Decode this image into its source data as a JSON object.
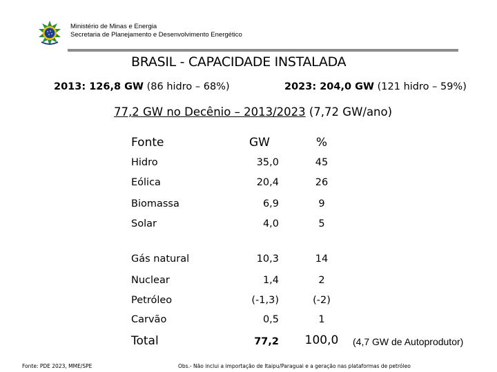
{
  "header": {
    "ministry_line1": "Ministério de Minas e Energia",
    "ministry_line2": "Secretaria de Planejamento e Desenvolvimento Energético",
    "seal_icon": "brazil-coat-of-arms-icon",
    "seal_colors": {
      "blue": "#1d3f8c",
      "green": "#2e8b3a",
      "yellow": "#e3c21a"
    }
  },
  "title": "BRASIL - CAPACIDADE INSTALADA",
  "summary": {
    "y2013_bold": "2013: 126,8 GW",
    "y2013_rest": " (86 hidro – 68%)",
    "y2023_bold": "2023: 204,0 GW",
    "y2023_rest": " (121 hidro – 59%)"
  },
  "decade": {
    "underlined": "77,2 GW no Decênio – 2013/2023",
    "rest": " (7,72 GW/ano)"
  },
  "table": {
    "headers": {
      "fonte": "Fonte",
      "gw": "GW",
      "pct": "%"
    },
    "rows": [
      {
        "fonte": "Hidro",
        "gw": "35,0",
        "pct": "45"
      },
      {
        "fonte": "Eólica",
        "gw": "20,4",
        "pct": "26"
      },
      {
        "fonte": "Biomassa",
        "gw": "6,9",
        "pct": "9"
      },
      {
        "fonte": "Solar",
        "gw": "4,0",
        "pct": "5"
      },
      {
        "fonte": "Gás natural",
        "gw": "10,3",
        "pct": "14"
      },
      {
        "fonte": "Nuclear",
        "gw": "1,4",
        "pct": "2"
      },
      {
        "fonte": "Petróleo",
        "gw": "(-1,3)",
        "pct": "(-2)"
      },
      {
        "fonte": "Carvão",
        "gw": "0,5",
        "pct": "1"
      }
    ],
    "total": {
      "fonte": "Total",
      "gw": "77,2",
      "pct": "100,0"
    },
    "autoprodutor_note": "(4,7 GW de Autoprodutor)"
  },
  "footer": {
    "source": "Fonte: PDE 2023, MME/SPE",
    "obs": "Obs.- Não inclui a importação de Itaipu/Paraguai e a geração nas plataformas de petróleo"
  }
}
